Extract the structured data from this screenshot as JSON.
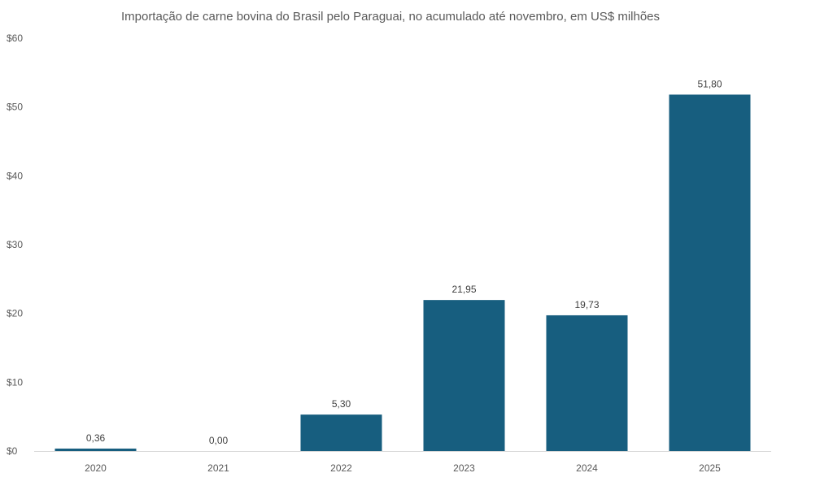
{
  "chart_data": {
    "type": "bar",
    "title": "Importação de carne bovina do Brasil pelo Paraguai, no acumulado até novembro, em US$ milhões",
    "categories": [
      "2020",
      "2021",
      "2022",
      "2023",
      "2024",
      "2025"
    ],
    "values": [
      0.36,
      0.0,
      5.3,
      21.95,
      19.73,
      51.8
    ],
    "data_labels": [
      "0,36",
      "0,00",
      "5,30",
      "21,95",
      "19,73",
      "51,80"
    ],
    "ytick_labels": [
      "$0",
      "$10",
      "$20",
      "$30",
      "$40",
      "$50",
      "$60"
    ],
    "yticks": [
      0,
      10,
      20,
      30,
      40,
      50,
      60
    ],
    "xlabel": "",
    "ylabel": "",
    "ylim": [
      0,
      60
    ],
    "grid": false,
    "legend": "none",
    "colors": {
      "bar": "#175E7F",
      "axis": "#D9D9D9"
    }
  }
}
